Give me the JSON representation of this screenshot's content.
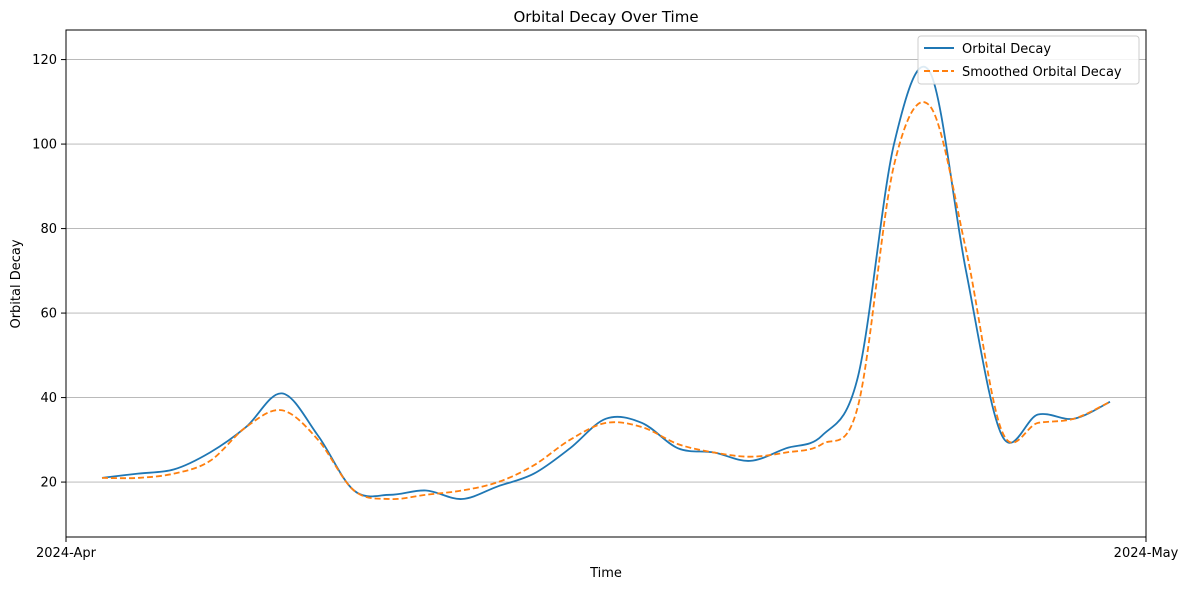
{
  "chart_data": {
    "type": "line",
    "title": "Orbital Decay Over Time",
    "xlabel": "Time",
    "ylabel": "Orbital Decay",
    "xlim": [
      "2024-04-01",
      "2024-05-01"
    ],
    "ylim": [
      7,
      127
    ],
    "x_ticks": [
      "2024-Apr",
      "2024-May"
    ],
    "y_ticks": [
      20,
      40,
      60,
      80,
      100,
      120
    ],
    "grid": "horizontal",
    "legend_position": "top-right",
    "series": [
      {
        "name": "Orbital Decay",
        "color": "#1f77b4",
        "style": "solid",
        "x": [
          "2024-04-02",
          "2024-04-03",
          "2024-04-04",
          "2024-04-05",
          "2024-04-06",
          "2024-04-07",
          "2024-04-08",
          "2024-04-09",
          "2024-04-10",
          "2024-04-11",
          "2024-04-12",
          "2024-04-13",
          "2024-04-14",
          "2024-04-15",
          "2024-04-16",
          "2024-04-17",
          "2024-04-18",
          "2024-04-19",
          "2024-04-20",
          "2024-04-21",
          "2024-04-22",
          "2024-04-23",
          "2024-04-24",
          "2024-04-25",
          "2024-04-26",
          "2024-04-27",
          "2024-04-28",
          "2024-04-29",
          "2024-04-30"
        ],
        "values": [
          21,
          22,
          23,
          27,
          33,
          41,
          31,
          18,
          17,
          18,
          16,
          19,
          22,
          28,
          35,
          34,
          28,
          27,
          25,
          28,
          31,
          45,
          100,
          117,
          70,
          31,
          36,
          35,
          39
        ]
      },
      {
        "name": "Smoothed Orbital Decay",
        "color": "#ff7f0e",
        "style": "dashed",
        "x": [
          "2024-04-02",
          "2024-04-03",
          "2024-04-04",
          "2024-04-05",
          "2024-04-06",
          "2024-04-07",
          "2024-04-08",
          "2024-04-09",
          "2024-04-10",
          "2024-04-11",
          "2024-04-12",
          "2024-04-13",
          "2024-04-14",
          "2024-04-15",
          "2024-04-16",
          "2024-04-17",
          "2024-04-18",
          "2024-04-19",
          "2024-04-20",
          "2024-04-21",
          "2024-04-22",
          "2024-04-23",
          "2024-04-24",
          "2024-04-25",
          "2024-04-26",
          "2024-04-27",
          "2024-04-28",
          "2024-04-29",
          "2024-04-30"
        ],
        "values": [
          21,
          21,
          22,
          25,
          33,
          37,
          30,
          18,
          16,
          17,
          18,
          20,
          24,
          30,
          34,
          33,
          29,
          27,
          26,
          27,
          29,
          38,
          95,
          109,
          75,
          32,
          34,
          35,
          39
        ]
      }
    ]
  }
}
